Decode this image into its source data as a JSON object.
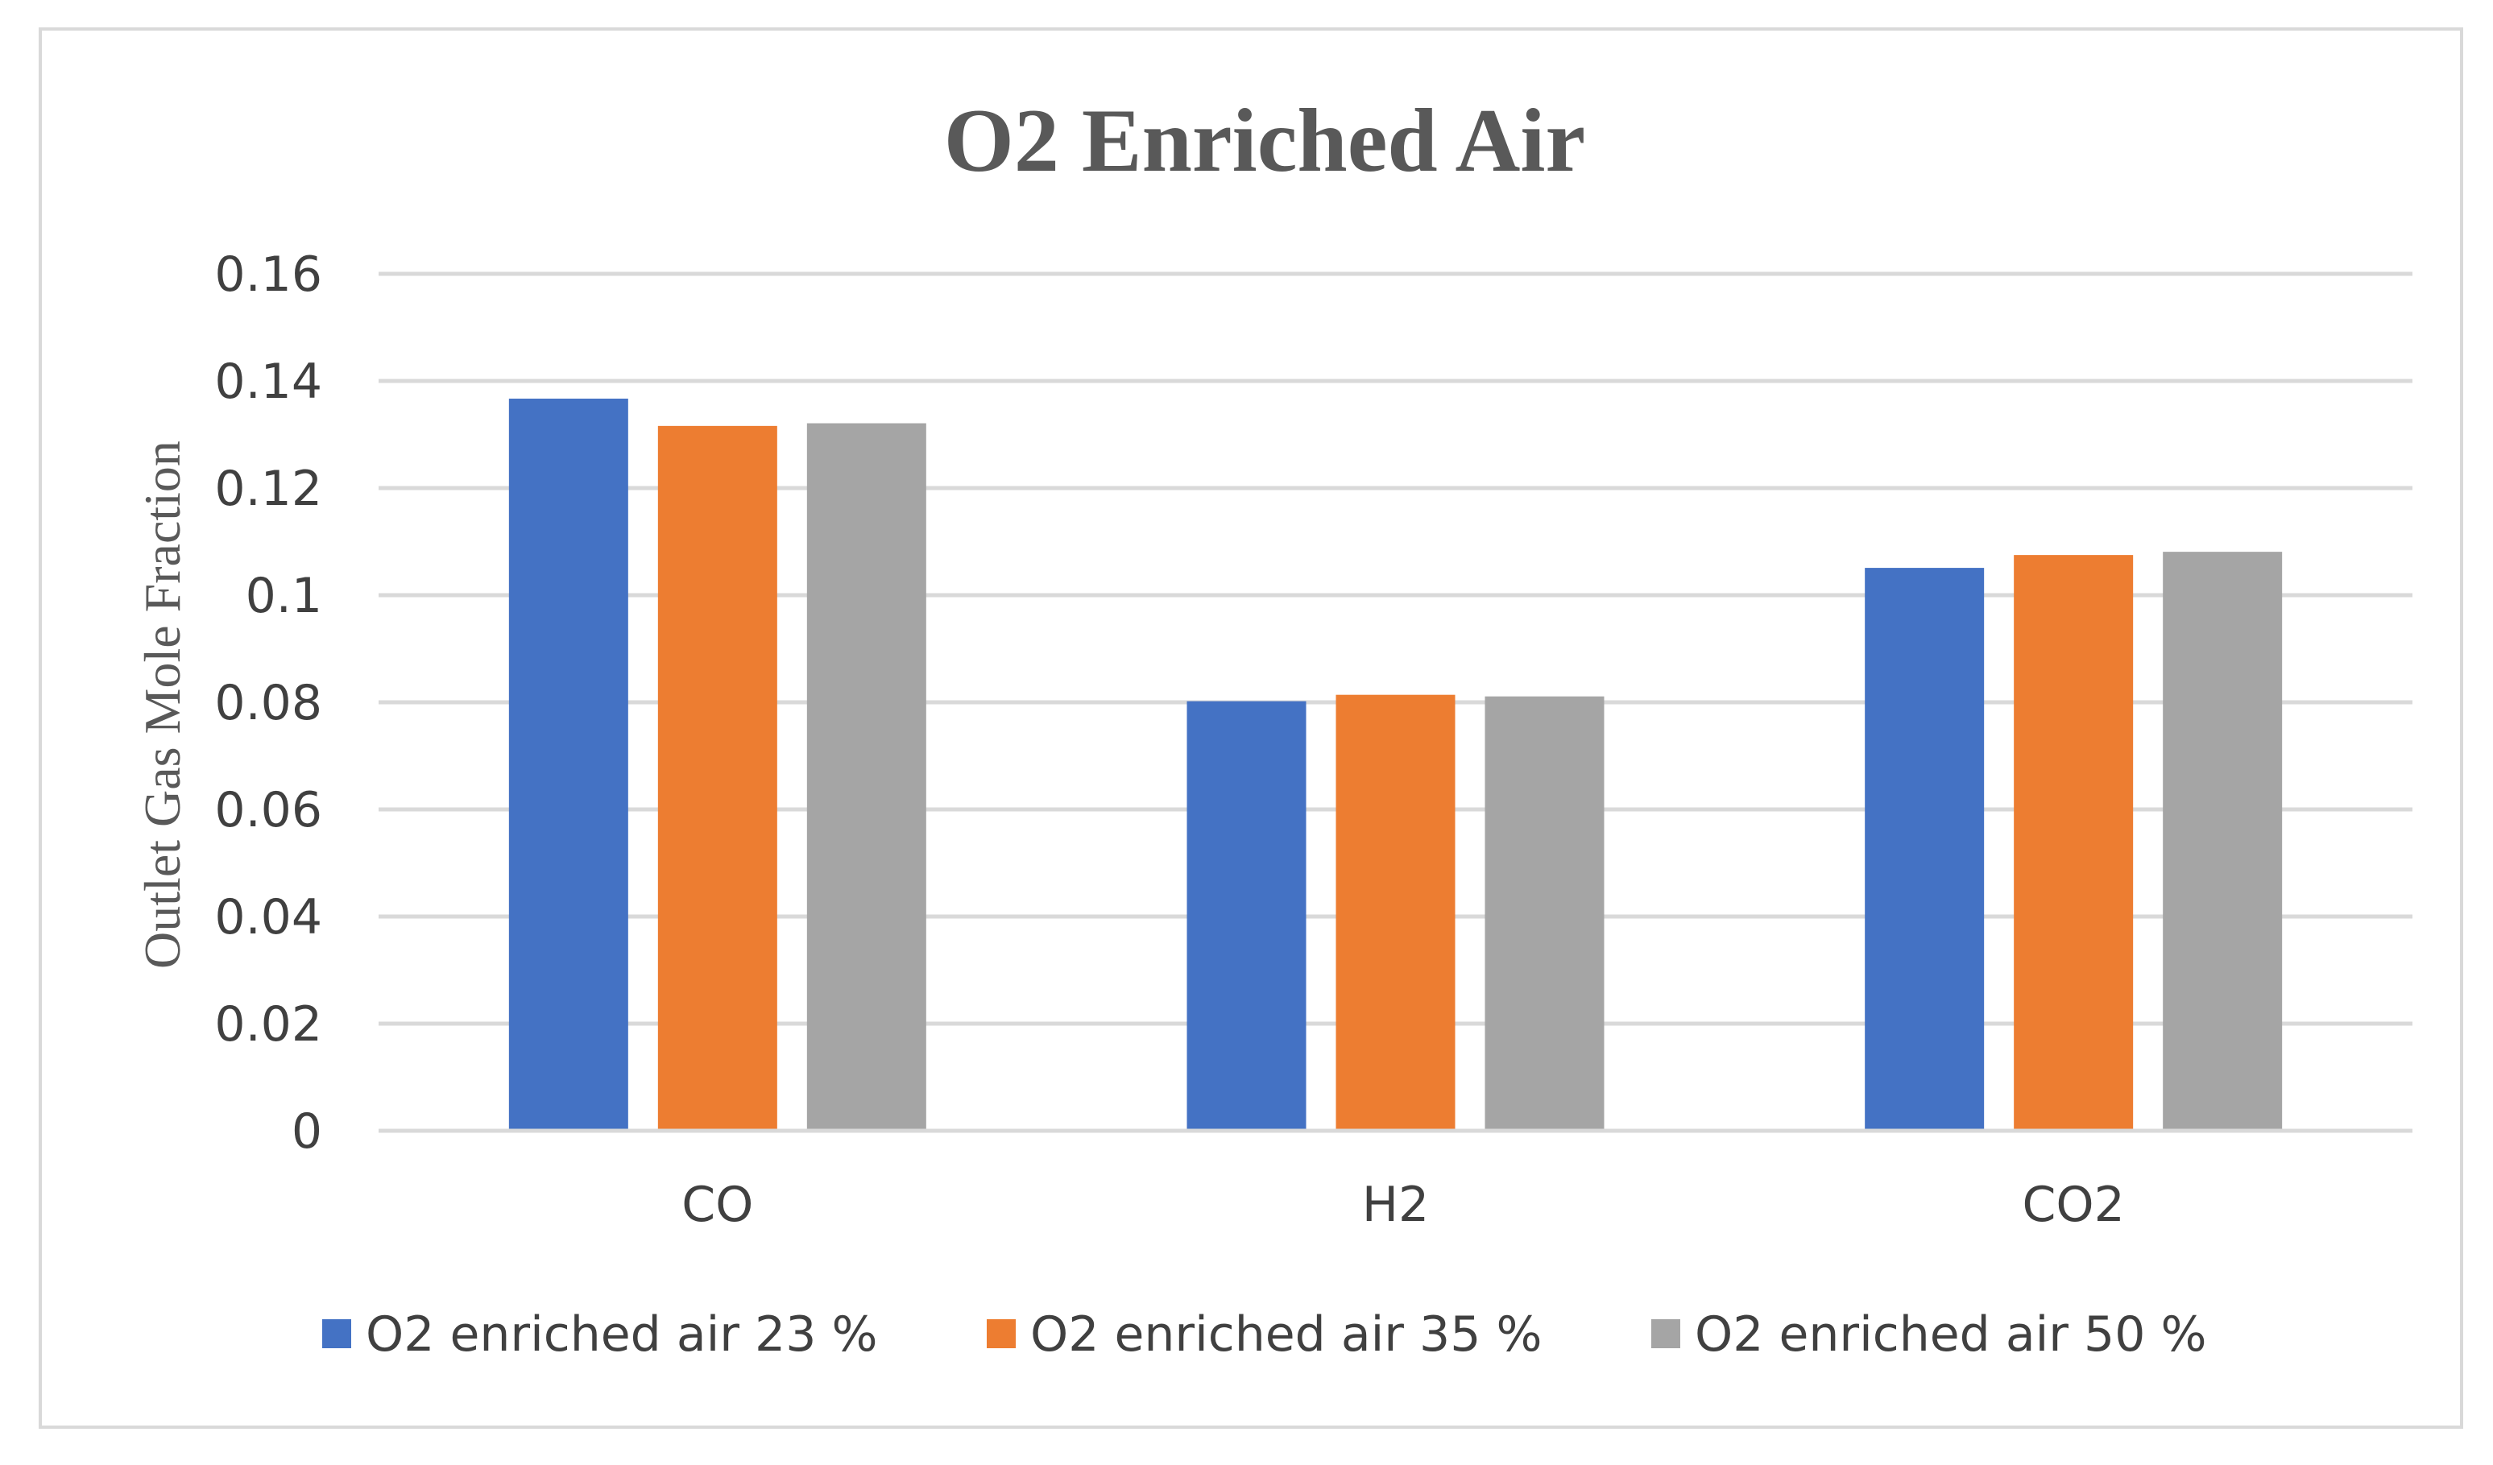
{
  "chart_data": {
    "type": "bar",
    "title": "O2 Enriched Air",
    "xlabel": "",
    "ylabel": "Outlet Gas Mole Fraction",
    "categories": [
      "CO",
      "H2",
      "CO2"
    ],
    "series": [
      {
        "name": "O2 enriched air 23 %",
        "color": "#4472c4",
        "values": [
          0.1367,
          0.0802,
          0.1051
        ]
      },
      {
        "name": "O2 enriched air 35 %",
        "color": "#ed7d31",
        "values": [
          0.1316,
          0.0814,
          0.1075
        ]
      },
      {
        "name": "O2 enriched air 50 %",
        "color": "#a5a5a5",
        "values": [
          0.1321,
          0.0811,
          0.1081
        ]
      }
    ],
    "ylim": [
      0,
      0.16
    ],
    "yticks": [
      0,
      0.02,
      0.04,
      0.06,
      0.08,
      0.1,
      0.12,
      0.14,
      0.16
    ],
    "ytick_labels": [
      "0",
      "0.02",
      "0.04",
      "0.06",
      "0.08",
      "0.1",
      "0.12",
      "0.14",
      "0.16"
    ],
    "grid": true,
    "legend_position": "bottom"
  }
}
